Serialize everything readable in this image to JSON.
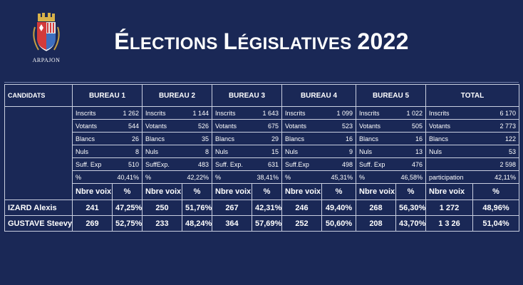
{
  "logo": {
    "icon": "arpajon-coat-of-arms-icon",
    "text": "ARPAJON"
  },
  "title": {
    "first_letter": "É",
    "word1": "LECTIONS",
    "word2_first": "L",
    "word2": "ÉGISLATIVES",
    "year": "2022"
  },
  "table": {
    "candidats_header": "CANDIDATS",
    "bureaux": [
      {
        "header": "BUREAU 1",
        "stats": [
          [
            "Inscrits",
            "1 262"
          ],
          [
            "Votants",
            "544"
          ],
          [
            "Blancs",
            "26"
          ],
          [
            "Nuls",
            "8"
          ],
          [
            "Suff. Exp",
            "510"
          ],
          [
            "%",
            "40,41%"
          ]
        ],
        "voix_label": "Nbre voix",
        "pct_label": "%",
        "results": [
          [
            "241",
            "47,25%"
          ],
          [
            "269",
            "52,75%"
          ]
        ]
      },
      {
        "header": "BUREAU 2",
        "stats": [
          [
            "Inscrits",
            "1 144"
          ],
          [
            "Votants",
            "526"
          ],
          [
            "Blancs",
            "35"
          ],
          [
            "Nuls",
            "8"
          ],
          [
            "SuffExp.",
            "483"
          ],
          [
            "%",
            "42,22%"
          ]
        ],
        "voix_label": "Nbre voix",
        "pct_label": "%",
        "results": [
          [
            "250",
            "51,76%"
          ],
          [
            "233",
            "48,24%"
          ]
        ]
      },
      {
        "header": "BUREAU 3",
        "stats": [
          [
            "Inscrits",
            "1 643"
          ],
          [
            "Votants",
            "675"
          ],
          [
            "Blancs",
            "29"
          ],
          [
            "Nuls",
            "15"
          ],
          [
            "Suff. Exp.",
            "631"
          ],
          [
            "%",
            "38,41%"
          ]
        ],
        "voix_label": "Nbre voix",
        "pct_label": "%",
        "results": [
          [
            "267",
            "42,31%"
          ],
          [
            "364",
            "57,69%"
          ]
        ]
      },
      {
        "header": "BUREAU 4",
        "stats": [
          [
            "Inscrits",
            "1 099"
          ],
          [
            "Votants",
            "523"
          ],
          [
            "Blancs",
            "16"
          ],
          [
            "Nuls",
            "9"
          ],
          [
            "Suff.Exp",
            "498"
          ],
          [
            "%",
            "45,31%"
          ]
        ],
        "voix_label": "Nbre voix",
        "pct_label": "%",
        "results": [
          [
            "246",
            "49,40%"
          ],
          [
            "252",
            "50,60%"
          ]
        ]
      },
      {
        "header": "BUREAU 5",
        "stats": [
          [
            "Inscrits",
            "1 022"
          ],
          [
            "Votants",
            "505"
          ],
          [
            "Blancs",
            "16"
          ],
          [
            "Nuls",
            "13"
          ],
          [
            "Suff.  Exp",
            "476"
          ],
          [
            "%",
            "46,58%"
          ]
        ],
        "voix_label": "Nbre voix",
        "pct_label": "%",
        "results": [
          [
            "268",
            "56,30%"
          ],
          [
            "208",
            "43,70%"
          ]
        ]
      },
      {
        "header": "TOTAL",
        "stats": [
          [
            "Inscrits",
            "6 170"
          ],
          [
            "Votants",
            "2 773"
          ],
          [
            "Blancs",
            "122"
          ],
          [
            "Nuls",
            "53"
          ],
          [
            "",
            "2 598"
          ],
          [
            "participation",
            "42,11%"
          ]
        ],
        "voix_label": "Nbre voix",
        "pct_label": "%",
        "results": [
          [
            "1 272",
            "48,96%"
          ],
          [
            "1 3  26",
            "51,04%"
          ]
        ]
      }
    ],
    "candidates": [
      "IZARD Alexis",
      "GUSTAVE Steevy"
    ]
  }
}
